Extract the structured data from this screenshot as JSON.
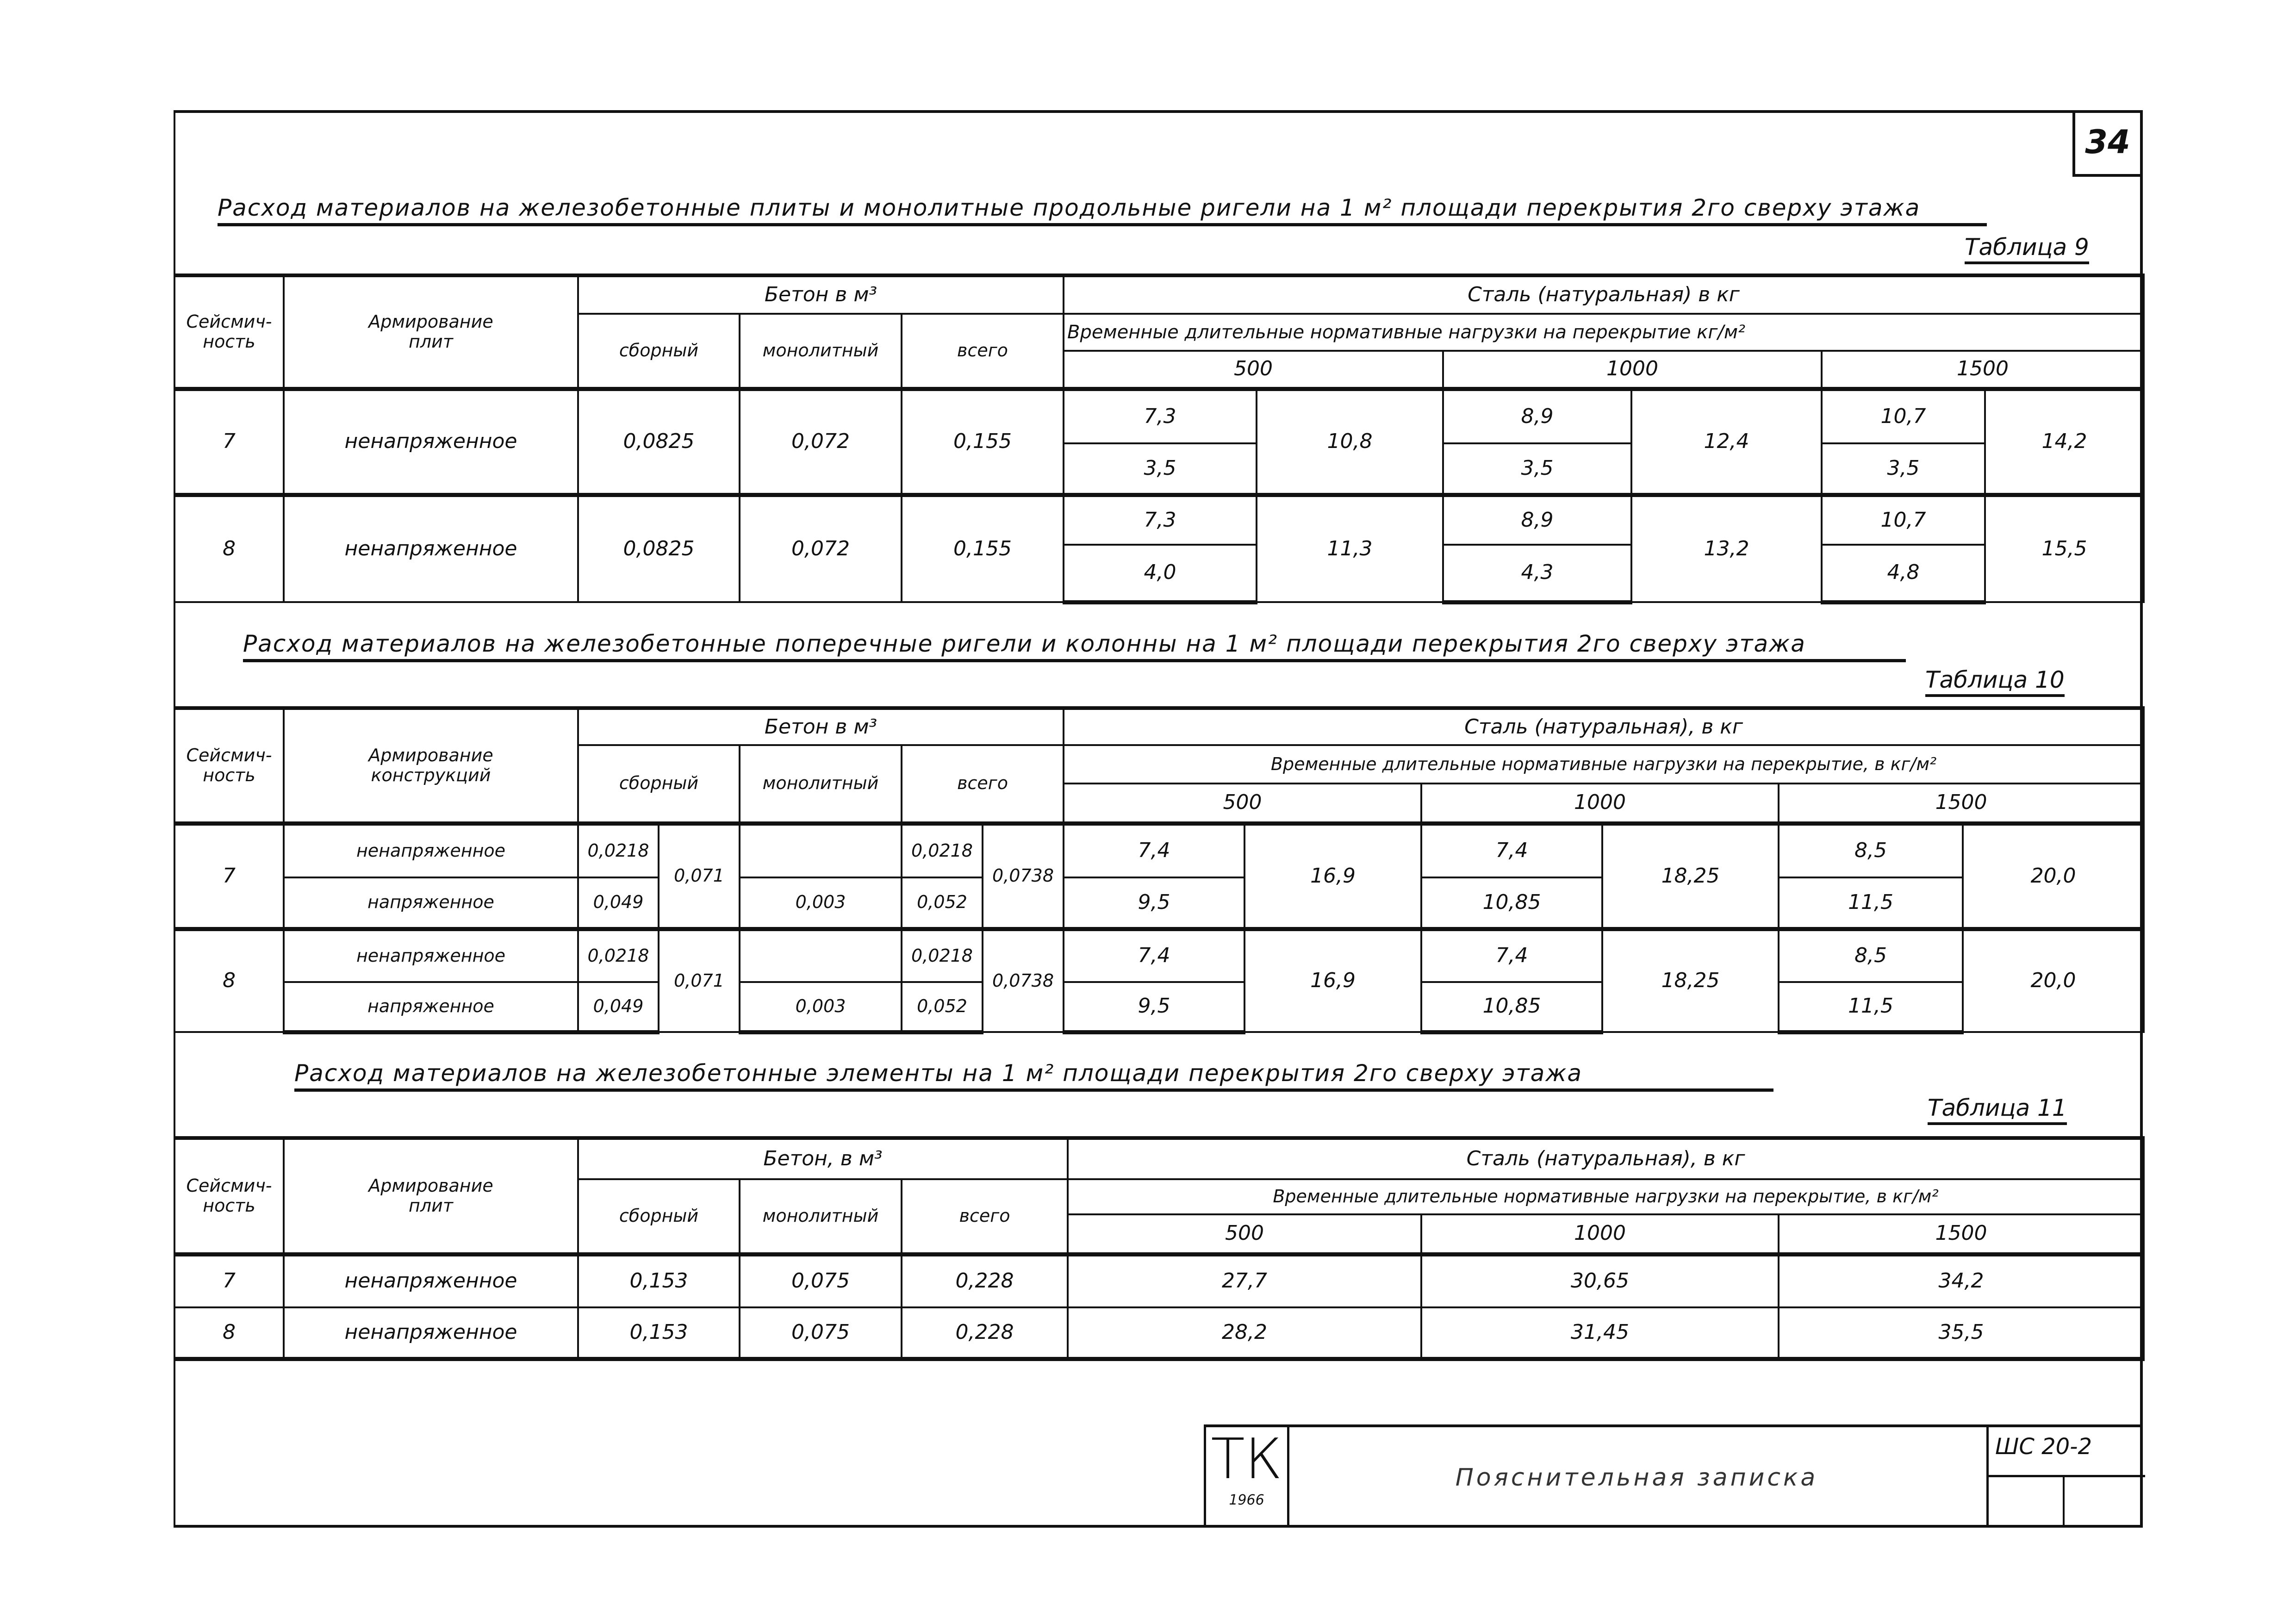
{
  "page_number": "34",
  "table9": {
    "title": "Расход материалов на железобетонные плиты и монолитные продольные ригели на 1 м² площади перекрытия 2го сверху этажа",
    "label": "Таблица 9",
    "headers": {
      "seismic": "Сейсмич-\nность",
      "reinforcement": "Армирование\nплит",
      "concrete": "Бетон в м³",
      "precast": "сборный",
      "monolithic": "монолитный",
      "total": "всего",
      "steel": "Сталь (натуральная) в кг",
      "loads": "Временные длительные нормативные нагрузки на перекрытие кг/м²",
      "load_values": [
        "500",
        "1000",
        "1500"
      ]
    },
    "rows": [
      {
        "seismic": "7",
        "reinforcement": "ненапряженное",
        "precast": "0,0825",
        "monolithic": "0,072",
        "total": "0,155",
        "l500": [
          "7,3",
          "3,5"
        ],
        "l500_total": "10,8",
        "l1000": [
          "8,9",
          "3,5"
        ],
        "l1000_total": "12,4",
        "l1500": [
          "10,7",
          "3,5"
        ],
        "l1500_total": "14,2"
      },
      {
        "seismic": "8",
        "reinforcement": "ненапряженное",
        "precast": "0,0825",
        "monolithic": "0,072",
        "total": "0,155",
        "l500": [
          "7,3",
          "4,0"
        ],
        "l500_total": "11,3",
        "l1000": [
          "8,9",
          "4,3"
        ],
        "l1000_total": "13,2",
        "l1500": [
          "10,7",
          "4,8"
        ],
        "l1500_total": "15,5"
      }
    ]
  },
  "table10": {
    "title": "Расход материалов на железобетонные поперечные ригели и колонны на 1 м² площади перекрытия 2го сверху этажа",
    "label": "Таблица 10",
    "headers": {
      "seismic": "Сейсмич-\nность",
      "reinforcement": "Армирование\nконструкций",
      "concrete": "Бетон в м³",
      "precast": "сборный",
      "monolithic": "монолитный",
      "total": "всего",
      "steel": "Сталь (натуральная), в кг",
      "loads": "Временные длительные нормативные нагрузки на перекрытие, в кг/м²",
      "load_values": [
        "500",
        "1000",
        "1500"
      ]
    },
    "rows": [
      {
        "seismic": "7",
        "precast_common": "0,071",
        "total_sum": "0,0738",
        "l500_total": "16,9",
        "l1000_total": "18,25",
        "l1500_total": "20,0",
        "sub": [
          {
            "reinforcement": "ненапряженное",
            "precast": "0,0218",
            "monolithic": "",
            "total": "0,0218",
            "l500": "7,4",
            "l1000": "7,4",
            "l1500": "8,5"
          },
          {
            "reinforcement": "напряженное",
            "precast": "0,049",
            "monolithic": "0,003",
            "total": "0,052",
            "l500": "9,5",
            "l1000": "10,85",
            "l1500": "11,5"
          }
        ]
      },
      {
        "seismic": "8",
        "precast_common": "0,071",
        "total_sum": "0,0738",
        "l500_total": "16,9",
        "l1000_total": "18,25",
        "l1500_total": "20,0",
        "sub": [
          {
            "reinforcement": "ненапряженное",
            "precast": "0,0218",
            "monolithic": "",
            "total": "0,0218",
            "l500": "7,4",
            "l1000": "7,4",
            "l1500": "8,5"
          },
          {
            "reinforcement": "напряженное",
            "precast": "0,049",
            "monolithic": "0,003",
            "total": "0,052",
            "l500": "9,5",
            "l1000": "10,85",
            "l1500": "11,5"
          }
        ]
      }
    ]
  },
  "table11": {
    "title": "Расход материалов на железобетонные элементы на 1 м² площади перекрытия 2го сверху этажа",
    "label": "Таблица 11",
    "headers": {
      "seismic": "Сейсмич-\nность",
      "reinforcement": "Армирование\nплит",
      "concrete": "Бетон, в м³",
      "precast": "сборный",
      "monolithic": "монолитный",
      "total": "всего",
      "steel": "Сталь (натуральная), в кг",
      "loads": "Временные длительные нормативные нагрузки на перекрытие, в кг/м²",
      "load_values": [
        "500",
        "1000",
        "1500"
      ]
    },
    "rows": [
      {
        "seismic": "7",
        "reinforcement": "ненапряженное",
        "precast": "0,153",
        "monolithic": "0,075",
        "total": "0,228",
        "l500": "27,7",
        "l1000": "30,65",
        "l1500": "34,2"
      },
      {
        "seismic": "8",
        "reinforcement": "ненапряженное",
        "precast": "0,153",
        "monolithic": "0,075",
        "total": "0,228",
        "l500": "28,2",
        "l1000": "31,45",
        "l1500": "35,5"
      }
    ]
  },
  "stamp": {
    "org": "ТК",
    "year": "1966",
    "title": "Пояснительная записка",
    "code": "ШС 20-2"
  }
}
